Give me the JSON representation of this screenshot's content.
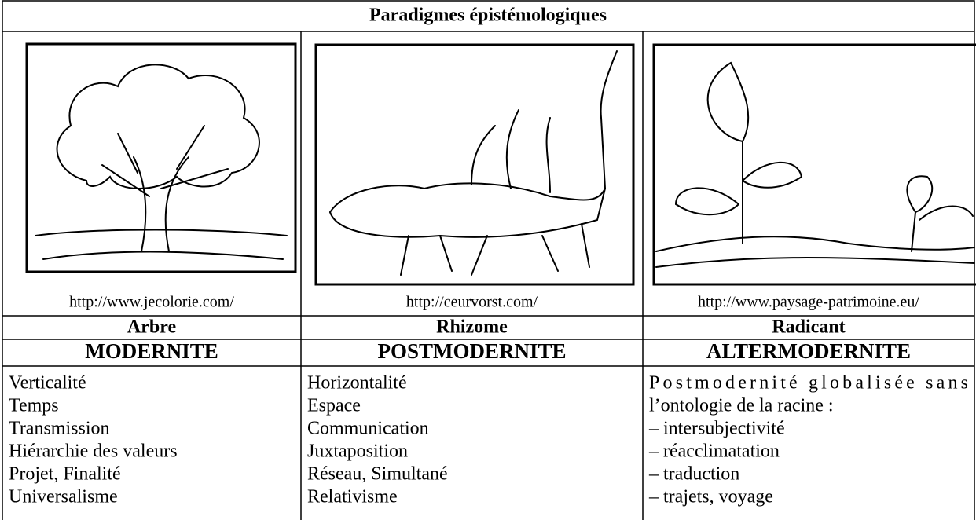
{
  "table": {
    "title": "Paradigmes épistémologiques",
    "columns": [
      {
        "source": "http://www.jecolorie.com/",
        "name": "Arbre",
        "era": "MODERNITE",
        "items": [
          "Verticalité",
          "Temps",
          "Transmission",
          "Hiérarchie des valeurs",
          "Projet, Finalité",
          "Universalisme"
        ]
      },
      {
        "source": "http://ceurvorst.com/",
        "name": "Rhizome",
        "era": "POSTMODERNITE",
        "items": [
          "Horizontalité",
          "Espace",
          "Communication",
          "Juxtaposition",
          "Réseau, Simultané",
          "Relativisme"
        ]
      },
      {
        "source": "http://www.paysage-patrimoine.eu/",
        "name": "Radicant",
        "era": "ALTERMODERNITE",
        "items": [
          "Postmodernité globalisée sans",
          "l’ontologie de la racine :",
          "– intersubjectivité",
          "– réacclimatation",
          "– traduction",
          "– trajets, voyage"
        ]
      }
    ]
  }
}
